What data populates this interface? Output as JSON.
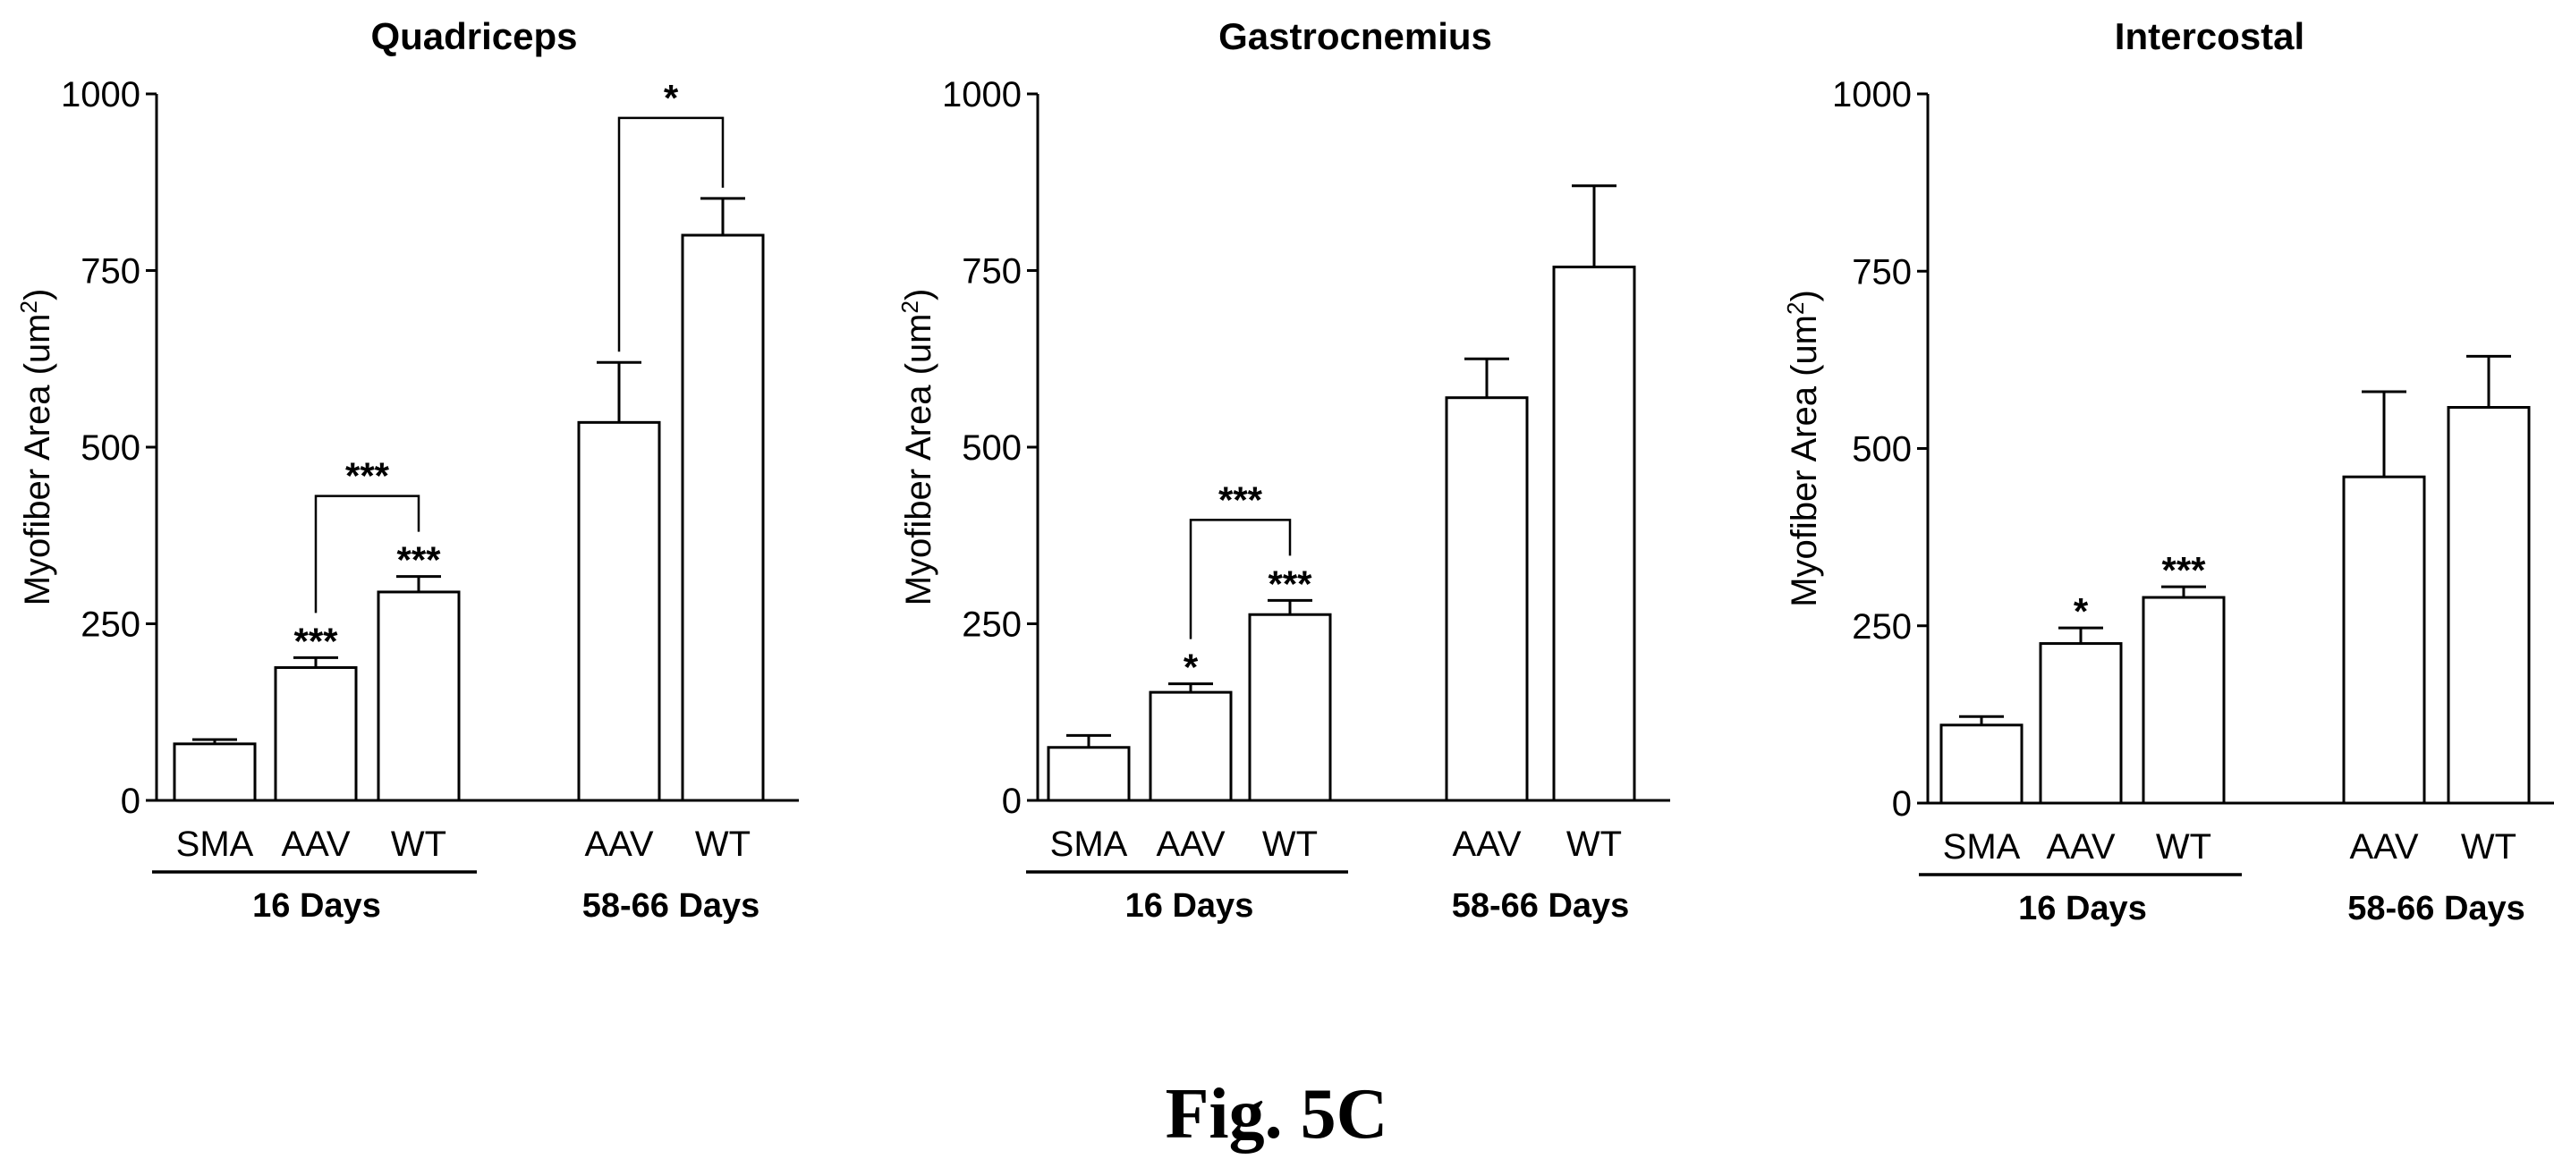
{
  "figure_caption": "Fig. 5C",
  "chart_data": [
    {
      "type": "bar",
      "title": "Quadriceps",
      "ylabel": "Myofiber Area (um2)",
      "ylabel_main": "Myofiber Area (um",
      "ylabel_sup": "2",
      "ylabel_close": ")",
      "ylim": [
        0,
        1000
      ],
      "yticks": [
        0,
        250,
        500,
        750,
        1000
      ],
      "categories": [
        "SMA",
        "AAV",
        "WT",
        "AAV",
        "WT"
      ],
      "groups": [
        {
          "label": "16 Days",
          "indices": [
            0,
            1,
            2
          ]
        },
        {
          "label": "58-66 Days",
          "indices": [
            3,
            4
          ]
        }
      ],
      "values": [
        80,
        188,
        295,
        535,
        800
      ],
      "errors": [
        6,
        14,
        22,
        85,
        52
      ],
      "bar_stars": [
        "",
        "***",
        "***",
        "",
        ""
      ],
      "brackets": [
        {
          "from": 1,
          "to": 2,
          "label": "***"
        },
        {
          "from": 3,
          "to": 4,
          "label": "*"
        }
      ],
      "grid": false
    },
    {
      "type": "bar",
      "title": "Gastrocnemius",
      "ylabel": "Myofiber Area (um2)",
      "ylabel_main": "Myofiber Area (um",
      "ylabel_sup": "2",
      "ylabel_close": ")",
      "ylim": [
        0,
        1000
      ],
      "yticks": [
        0,
        250,
        500,
        750,
        1000
      ],
      "categories": [
        "SMA",
        "AAV",
        "WT",
        "AAV",
        "WT"
      ],
      "groups": [
        {
          "label": "16 Days",
          "indices": [
            0,
            1,
            2
          ]
        },
        {
          "label": "58-66 Days",
          "indices": [
            3,
            4
          ]
        }
      ],
      "values": [
        75,
        153,
        263,
        570,
        755
      ],
      "errors": [
        17,
        12,
        20,
        55,
        115
      ],
      "bar_stars": [
        "",
        "*",
        "***",
        "",
        ""
      ],
      "brackets": [
        {
          "from": 1,
          "to": 2,
          "label": "***"
        }
      ],
      "grid": false
    },
    {
      "type": "bar",
      "title": "Intercostal",
      "ylabel": "Myofiber Area (um2)",
      "ylabel_main": "Myofiber Area (um",
      "ylabel_sup": "2",
      "ylabel_close": ")",
      "ylim": [
        0,
        1000
      ],
      "yticks": [
        0,
        250,
        500,
        750,
        1000
      ],
      "categories": [
        "SMA",
        "AAV",
        "WT",
        "AAV",
        "WT"
      ],
      "groups": [
        {
          "label": "16 Days",
          "indices": [
            0,
            1,
            2
          ]
        },
        {
          "label": "58-66 Days",
          "indices": [
            3,
            4
          ]
        }
      ],
      "values": [
        110,
        225,
        290,
        460,
        558
      ],
      "errors": [
        12,
        22,
        15,
        120,
        72
      ],
      "bar_stars": [
        "",
        "*",
        "***",
        "",
        ""
      ],
      "brackets": [],
      "grid": false
    }
  ]
}
